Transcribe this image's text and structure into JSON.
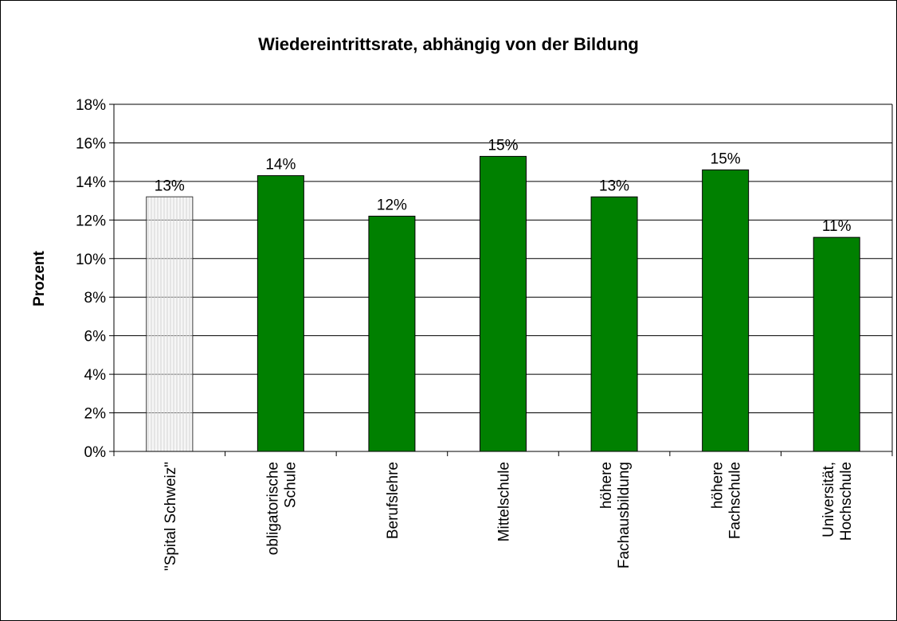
{
  "chart_data": {
    "type": "bar",
    "title": "Wiedereintrittsrate, abhängig von der Bildung",
    "ylabel": "Prozent",
    "categories": [
      "\"Spital Schweiz\"",
      "obligatorische\nSchule",
      "Berufslehre",
      "Mittelschule",
      "höhere\nFachausbildung",
      "höhere\nFachschule",
      "Universität,\nHochschule"
    ],
    "values": [
      13.2,
      14.3,
      12.2,
      15.3,
      13.2,
      14.6,
      11.1
    ],
    "value_labels": [
      "13%",
      "14%",
      "12%",
      "15%",
      "13%",
      "15%",
      "11%"
    ],
    "colors": [
      "#eeeeee",
      "#008000",
      "#008000",
      "#008000",
      "#008000",
      "#008000",
      "#008000"
    ],
    "ylim": [
      0,
      18
    ],
    "yticks": [
      {
        "value": 0,
        "label": "0%"
      },
      {
        "value": 2,
        "label": "2%"
      },
      {
        "value": 4,
        "label": "4%"
      },
      {
        "value": 6,
        "label": "6%"
      },
      {
        "value": 8,
        "label": "8%"
      },
      {
        "value": 10,
        "label": "10%"
      },
      {
        "value": 12,
        "label": "12%"
      },
      {
        "value": 14,
        "label": "14%"
      },
      {
        "value": 16,
        "label": "16%"
      },
      {
        "value": 18,
        "label": "18%"
      }
    ],
    "grid": true
  }
}
